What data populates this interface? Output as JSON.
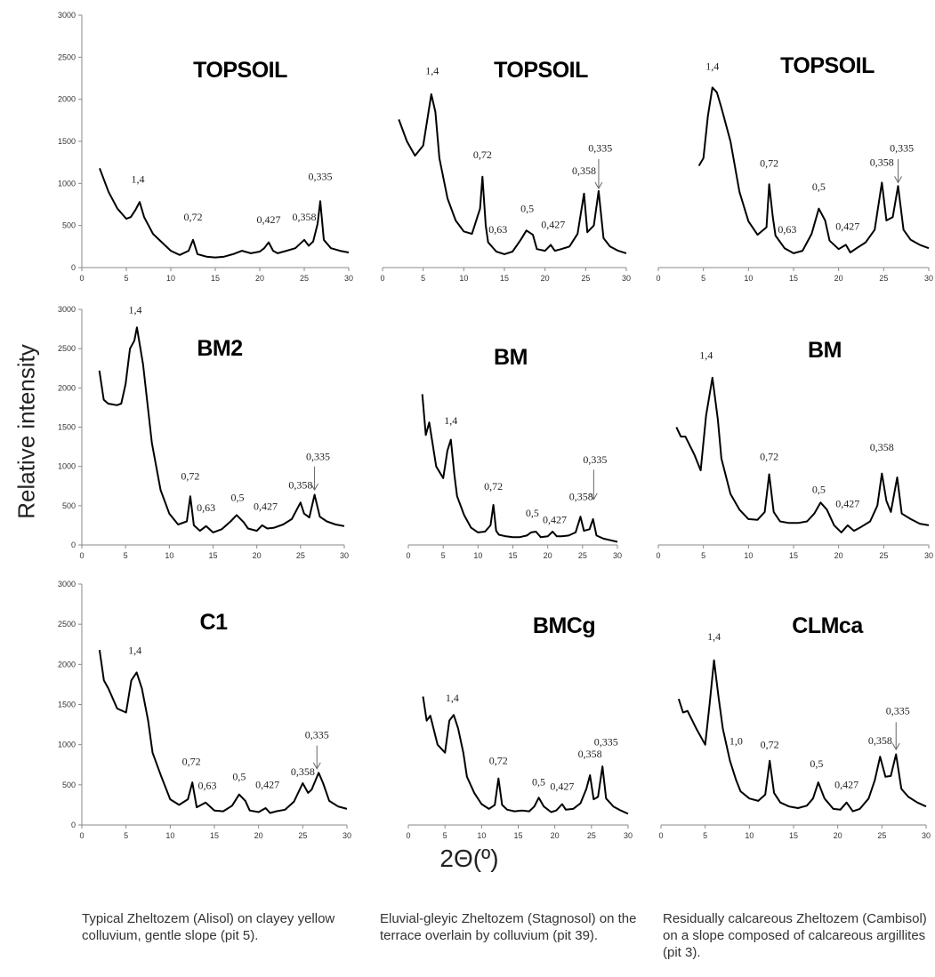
{
  "ylabel": "Relative intensity",
  "xlabel": "2Θ(º)",
  "captions": [
    "Typical Zheltozem (Alisol) on clayey yellow colluvium, gentle slope (pit 5).",
    "Eluvial-gleyic Zheltozem (Stagnosol) on the terrace overlain by colluvium (pit 39).",
    "Residually calcareous Zheltozem (Cambisol) on a slope composed of calcareous argillites (pit 3)."
  ],
  "chart_data": [
    {
      "type": "line",
      "title": "TOPSOIL",
      "xlim": [
        0,
        30
      ],
      "ylim": [
        0,
        3000
      ],
      "show_yticks": true,
      "xticks": [
        0,
        5,
        10,
        15,
        20,
        25,
        30
      ],
      "yticks": [
        0,
        500,
        1000,
        1500,
        2000,
        2500,
        3000
      ],
      "x": [
        2,
        3,
        4,
        5,
        5.5,
        6,
        6.5,
        7,
        8,
        9,
        10,
        11,
        12,
        12.5,
        13,
        14,
        15,
        16,
        17,
        18,
        19,
        20,
        20.5,
        21,
        21.5,
        22,
        23,
        24,
        25,
        25.5,
        26,
        26.5,
        26.8,
        27.2,
        28,
        29,
        30
      ],
      "y": [
        1180,
        900,
        700,
        580,
        600,
        680,
        780,
        600,
        400,
        300,
        200,
        150,
        200,
        330,
        160,
        130,
        120,
        130,
        160,
        200,
        170,
        190,
        230,
        300,
        200,
        170,
        200,
        230,
        330,
        260,
        310,
        520,
        790,
        330,
        230,
        200,
        180
      ],
      "peaks": [
        {
          "label": "1,4",
          "x": 6.3,
          "y": 1010
        },
        {
          "label": "0,72",
          "x": 12.5,
          "y": 560
        },
        {
          "label": "0,427",
          "x": 21,
          "y": 530
        },
        {
          "label": "0,358",
          "x": 25,
          "y": 560
        },
        {
          "label": "0,335",
          "x": 26.8,
          "y": 1040
        }
      ]
    },
    {
      "type": "line",
      "title": "TOPSOIL",
      "xlim": [
        0,
        30
      ],
      "ylim": [
        0,
        3000
      ],
      "show_yticks": false,
      "xticks": [
        0,
        5,
        10,
        15,
        20,
        25,
        30
      ],
      "x": [
        2,
        3,
        4,
        5,
        5.5,
        6,
        6.5,
        7,
        8,
        9,
        10,
        11,
        12,
        12.3,
        12.7,
        13,
        14,
        15,
        16,
        17,
        17.7,
        18.5,
        19,
        20,
        20.7,
        21.2,
        22,
        23,
        24,
        24.8,
        25.2,
        26,
        26.6,
        27.2,
        28,
        29,
        30
      ],
      "y": [
        1760,
        1500,
        1330,
        1450,
        1750,
        2060,
        1850,
        1300,
        820,
        560,
        430,
        400,
        700,
        1080,
        500,
        300,
        190,
        160,
        190,
        330,
        440,
        390,
        220,
        200,
        270,
        200,
        220,
        250,
        400,
        880,
        420,
        500,
        910,
        350,
        250,
        200,
        170
      ],
      "peaks": [
        {
          "label": "1,4",
          "x": 6.1,
          "y": 2300
        },
        {
          "label": "0,72",
          "x": 12.3,
          "y": 1300
        },
        {
          "label": "0,63",
          "x": 14.2,
          "y": 410
        },
        {
          "label": "0,5",
          "x": 17.8,
          "y": 660
        },
        {
          "label": "0,427",
          "x": 21,
          "y": 470
        },
        {
          "label": "0,358",
          "x": 24.8,
          "y": 1110
        },
        {
          "label": "0,335",
          "x": 26.8,
          "y": 1380
        }
      ],
      "arrows": [
        {
          "x": 26.6,
          "y_top": 1290,
          "y_tip": 940
        }
      ]
    },
    {
      "type": "line",
      "title": "TOPSOIL",
      "xlim": [
        0,
        30
      ],
      "ylim": [
        0,
        3000
      ],
      "show_yticks": false,
      "xticks": [
        0,
        5,
        10,
        15,
        20,
        25,
        30
      ],
      "x": [
        4.5,
        5,
        5.5,
        6,
        6.5,
        7,
        8,
        9,
        10,
        11,
        12,
        12.3,
        12.7,
        13,
        14,
        15,
        16,
        17,
        17.8,
        18.5,
        19,
        20,
        20.8,
        21.3,
        22,
        23,
        24,
        24.8,
        25.3,
        26,
        26.6,
        27.2,
        28,
        29,
        30
      ],
      "y": [
        1210,
        1300,
        1800,
        2140,
        2080,
        1900,
        1500,
        900,
        550,
        390,
        480,
        990,
        600,
        380,
        230,
        170,
        200,
        400,
        700,
        560,
        320,
        220,
        270,
        180,
        230,
        300,
        450,
        1010,
        560,
        600,
        970,
        450,
        330,
        270,
        230
      ],
      "peaks": [
        {
          "label": "1,4",
          "x": 6,
          "y": 2350
        },
        {
          "label": "0,72",
          "x": 12.3,
          "y": 1200
        },
        {
          "label": "0,63",
          "x": 14.3,
          "y": 410
        },
        {
          "label": "0,5",
          "x": 17.8,
          "y": 920
        },
        {
          "label": "0,427",
          "x": 21,
          "y": 450
        },
        {
          "label": "0,358",
          "x": 24.8,
          "y": 1210
        },
        {
          "label": "0,335",
          "x": 27,
          "y": 1380
        }
      ],
      "arrows": [
        {
          "x": 26.6,
          "y_top": 1290,
          "y_tip": 1010
        }
      ]
    },
    {
      "type": "line",
      "title": "BM2",
      "xlim": [
        0,
        30
      ],
      "ylim": [
        0,
        3000
      ],
      "show_yticks": true,
      "xticks": [
        0,
        5,
        10,
        15,
        20,
        25,
        30
      ],
      "yticks": [
        0,
        500,
        1000,
        1500,
        2000,
        2500,
        3000
      ],
      "x": [
        2,
        2.5,
        3,
        4,
        4.5,
        5,
        5.5,
        6,
        6.3,
        7,
        8,
        9,
        10,
        11,
        12,
        12.4,
        12.8,
        13.5,
        14.2,
        15,
        16,
        17,
        17.7,
        18.5,
        19,
        20,
        20.6,
        21.2,
        22,
        23,
        24,
        25,
        25.4,
        26,
        26.6,
        27.2,
        28,
        29,
        30
      ],
      "y": [
        2220,
        1850,
        1800,
        1780,
        1800,
        2050,
        2500,
        2600,
        2770,
        2300,
        1300,
        700,
        400,
        260,
        300,
        620,
        250,
        180,
        240,
        160,
        200,
        300,
        380,
        290,
        210,
        180,
        250,
        210,
        220,
        260,
        330,
        540,
        400,
        350,
        640,
        360,
        300,
        260,
        240
      ],
      "peaks": [
        {
          "label": "1,4",
          "x": 6.1,
          "y": 2950
        },
        {
          "label": "0,72",
          "x": 12.4,
          "y": 830
        },
        {
          "label": "0,63",
          "x": 14.2,
          "y": 430
        },
        {
          "label": "0,5",
          "x": 17.8,
          "y": 560
        },
        {
          "label": "0,427",
          "x": 21,
          "y": 450
        },
        {
          "label": "0,358",
          "x": 25,
          "y": 720
        },
        {
          "label": "0,335",
          "x": 27,
          "y": 1080
        }
      ],
      "arrows": [
        {
          "x": 26.6,
          "y_top": 1000,
          "y_tip": 700
        }
      ]
    },
    {
      "type": "line",
      "title": "BM",
      "xlim": [
        0,
        30
      ],
      "ylim": [
        0,
        3000
      ],
      "show_yticks": false,
      "xticks": [
        0,
        5,
        10,
        15,
        20,
        25,
        30
      ],
      "x": [
        2,
        2.5,
        3,
        4,
        5,
        5.6,
        6.1,
        6.6,
        7,
        8,
        9,
        10,
        11,
        11.8,
        12.2,
        12.6,
        13,
        14,
        15,
        16,
        17,
        17.6,
        18.3,
        19,
        20,
        20.7,
        21.3,
        22,
        23,
        24,
        24.7,
        25.2,
        26,
        26.5,
        27,
        28,
        29,
        30
      ],
      "y": [
        1920,
        1400,
        1560,
        1000,
        850,
        1200,
        1340,
        900,
        620,
        380,
        220,
        160,
        170,
        250,
        510,
        180,
        130,
        110,
        100,
        100,
        120,
        160,
        170,
        100,
        110,
        170,
        110,
        110,
        120,
        160,
        360,
        180,
        200,
        330,
        120,
        80,
        60,
        40
      ],
      "peaks": [
        {
          "label": "1,4",
          "x": 6.1,
          "y": 1540
        },
        {
          "label": "0,72",
          "x": 12.2,
          "y": 700
        },
        {
          "label": "0,5",
          "x": 17.8,
          "y": 360
        },
        {
          "label": "0,427",
          "x": 21,
          "y": 280
        },
        {
          "label": "0,358",
          "x": 24.8,
          "y": 570
        },
        {
          "label": "0,335",
          "x": 26.8,
          "y": 1040
        }
      ],
      "arrows": [
        {
          "x": 26.6,
          "y_top": 960,
          "y_tip": 580
        }
      ]
    },
    {
      "type": "line",
      "title": "BM",
      "xlim": [
        0,
        30
      ],
      "ylim": [
        0,
        3000
      ],
      "show_yticks": false,
      "xticks": [
        0,
        5,
        10,
        15,
        20,
        25,
        30
      ],
      "x": [
        2,
        2.5,
        3,
        4,
        4.7,
        5.3,
        6,
        6.6,
        7,
        8,
        9,
        10,
        11,
        11.8,
        12.3,
        12.8,
        13.5,
        14.5,
        15.5,
        16.5,
        17.3,
        18,
        18.7,
        19.5,
        20.3,
        21,
        21.7,
        22.5,
        23.5,
        24.3,
        24.8,
        25.3,
        25.8,
        26.5,
        27,
        28,
        29,
        30
      ],
      "y": [
        1500,
        1380,
        1380,
        1150,
        950,
        1650,
        2130,
        1600,
        1100,
        650,
        450,
        330,
        320,
        420,
        900,
        420,
        300,
        280,
        280,
        300,
        400,
        540,
        450,
        250,
        160,
        250,
        180,
        230,
        300,
        500,
        910,
        560,
        420,
        860,
        400,
        330,
        270,
        250
      ],
      "peaks": [
        {
          "label": "1,4",
          "x": 5.3,
          "y": 2370
        },
        {
          "label": "0,72",
          "x": 12.3,
          "y": 1080
        },
        {
          "label": "0,5",
          "x": 17.8,
          "y": 660
        },
        {
          "label": "0,427",
          "x": 21,
          "y": 480
        },
        {
          "label": "0,358",
          "x": 24.8,
          "y": 1200
        }
      ]
    },
    {
      "type": "line",
      "title": "C1",
      "xlim": [
        0,
        30
      ],
      "ylim": [
        0,
        3000
      ],
      "show_yticks": true,
      "xticks": [
        0,
        5,
        10,
        15,
        20,
        25,
        30
      ],
      "yticks": [
        0,
        500,
        1000,
        1500,
        2000,
        2500,
        3000
      ],
      "x": [
        2,
        2.5,
        3,
        4,
        5,
        5.6,
        6.2,
        6.8,
        7.5,
        8,
        9,
        10,
        11,
        12,
        12.5,
        13,
        14,
        15,
        16,
        17,
        17.8,
        18.5,
        19,
        20,
        20.8,
        21.3,
        22,
        23,
        24,
        25,
        25.6,
        26,
        26.8,
        27.3,
        28,
        29,
        30
      ],
      "y": [
        2180,
        1800,
        1700,
        1450,
        1400,
        1800,
        1900,
        1700,
        1300,
        900,
        600,
        320,
        250,
        320,
        530,
        220,
        280,
        180,
        170,
        240,
        380,
        300,
        180,
        160,
        210,
        150,
        170,
        190,
        290,
        520,
        400,
        440,
        650,
        520,
        300,
        230,
        200
      ],
      "peaks": [
        {
          "label": "1,4",
          "x": 6,
          "y": 2130
        },
        {
          "label": "0,72",
          "x": 12.4,
          "y": 750
        },
        {
          "label": "0,63",
          "x": 14.2,
          "y": 450
        },
        {
          "label": "0,5",
          "x": 17.8,
          "y": 560
        },
        {
          "label": "0,427",
          "x": 21,
          "y": 460
        },
        {
          "label": "0,358",
          "x": 25,
          "y": 620
        },
        {
          "label": "0,335",
          "x": 26.6,
          "y": 1080
        }
      ],
      "arrows": [
        {
          "x": 26.6,
          "y_top": 990,
          "y_tip": 700
        }
      ]
    },
    {
      "type": "line",
      "title": "BMCg",
      "xlim": [
        0,
        30
      ],
      "ylim": [
        0,
        3000
      ],
      "show_yticks": false,
      "xticks": [
        0,
        5,
        10,
        15,
        20,
        25,
        30
      ],
      "x": [
        2,
        2.5,
        3,
        4,
        5,
        5.6,
        6.2,
        6.8,
        7.5,
        8,
        9,
        10,
        11,
        11.8,
        12.3,
        12.8,
        13.5,
        14.5,
        15.5,
        16.5,
        17.2,
        17.8,
        18.5,
        19.5,
        20.2,
        21,
        21.5,
        22.5,
        23.5,
        24.3,
        24.8,
        25.3,
        25.9,
        26.5,
        27,
        28,
        29,
        30
      ],
      "y": [
        1600,
        1300,
        1360,
        1000,
        900,
        1300,
        1370,
        1200,
        900,
        600,
        400,
        260,
        200,
        250,
        580,
        250,
        190,
        170,
        180,
        170,
        230,
        340,
        230,
        160,
        180,
        260,
        190,
        200,
        270,
        450,
        620,
        320,
        350,
        730,
        330,
        230,
        180,
        140
      ],
      "peaks": [
        {
          "label": "1,4",
          "x": 6,
          "y": 1540
        },
        {
          "label": "0,72",
          "x": 12.3,
          "y": 760
        },
        {
          "label": "0,5",
          "x": 17.8,
          "y": 490
        },
        {
          "label": "0,427",
          "x": 21,
          "y": 440
        },
        {
          "label": "0,358",
          "x": 24.8,
          "y": 840
        },
        {
          "label": "0,335",
          "x": 27,
          "y": 990
        }
      ]
    },
    {
      "type": "line",
      "title": "CLMca",
      "xlim": [
        0,
        30
      ],
      "ylim": [
        0,
        3000
      ],
      "show_yticks": false,
      "xticks": [
        0,
        5,
        10,
        15,
        20,
        25,
        30
      ],
      "x": [
        2,
        2.5,
        3,
        4,
        5,
        5.5,
        6,
        6.5,
        7,
        7.8,
        8.5,
        9,
        10,
        11,
        11.8,
        12.3,
        12.8,
        13.5,
        14.5,
        15.5,
        16.5,
        17.2,
        17.8,
        18.5,
        19.5,
        20.3,
        21,
        21.7,
        22.5,
        23.5,
        24.2,
        24.8,
        25.4,
        26,
        26.6,
        27.2,
        28,
        29,
        30
      ],
      "y": [
        1570,
        1400,
        1420,
        1200,
        1000,
        1500,
        2050,
        1600,
        1200,
        800,
        560,
        420,
        330,
        300,
        380,
        800,
        400,
        280,
        230,
        210,
        240,
        330,
        530,
        330,
        200,
        190,
        280,
        170,
        200,
        330,
        560,
        850,
        600,
        610,
        880,
        450,
        350,
        280,
        230
      ],
      "peaks": [
        {
          "label": "1,4",
          "x": 6,
          "y": 2300
        },
        {
          "label": "1,0",
          "x": 8.5,
          "y": 1000
        },
        {
          "label": "0,72",
          "x": 12.3,
          "y": 960
        },
        {
          "label": "0,5",
          "x": 17.6,
          "y": 720
        },
        {
          "label": "0,427",
          "x": 21,
          "y": 460
        },
        {
          "label": "0,358",
          "x": 24.8,
          "y": 1010
        },
        {
          "label": "0,335",
          "x": 26.8,
          "y": 1380
        }
      ],
      "arrows": [
        {
          "x": 26.6,
          "y_top": 1280,
          "y_tip": 940
        }
      ]
    }
  ]
}
